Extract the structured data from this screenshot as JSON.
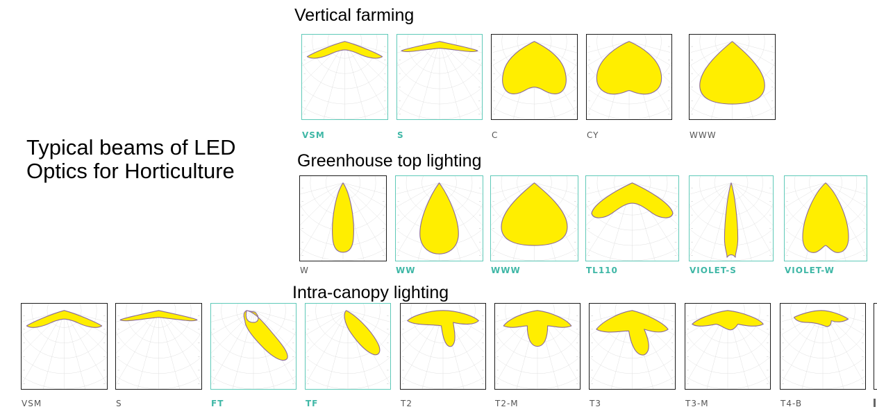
{
  "title_lines": [
    "Typical beams of LED",
    "Optics for Horticulture"
  ],
  "colors": {
    "teal": "#5ec9b8",
    "beam_fill": "#ffee00",
    "beam_edge": "#8a6a9a",
    "grid": "#dadada"
  },
  "sections": [
    {
      "title": "Vertical farming",
      "panels": [
        {
          "label": "VSM",
          "teal": true,
          "shape": "flat-wide"
        },
        {
          "label": "S",
          "teal": true,
          "shape": "flat-thin"
        },
        {
          "label": "C",
          "teal": false,
          "shape": "wide-dented"
        },
        {
          "label": "CY",
          "teal": false,
          "shape": "wide-dented2"
        },
        {
          "label": "WWW",
          "teal": false,
          "shape": "wide-teardrop"
        }
      ]
    },
    {
      "title": "Greenhouse top lighting",
      "panels": [
        {
          "label": "W",
          "teal": false,
          "shape": "narrow"
        },
        {
          "label": "WW",
          "teal": true,
          "shape": "teardrop"
        },
        {
          "label": "WWW",
          "teal": true,
          "shape": "wide-teardrop"
        },
        {
          "label": "TL110",
          "teal": true,
          "shape": "chevron"
        },
        {
          "label": "VIOLET-S",
          "teal": true,
          "shape": "spike"
        },
        {
          "label": "VIOLET-W",
          "teal": true,
          "shape": "bulb"
        }
      ]
    },
    {
      "title": "Intra-canopy lighting",
      "panels": [
        {
          "label": "VSM",
          "teal": false,
          "shape": "flat-wide"
        },
        {
          "label": "S",
          "teal": false,
          "shape": "flat-thin"
        },
        {
          "label": "FT",
          "teal": true,
          "shape": "diag"
        },
        {
          "label": "TF",
          "teal": true,
          "shape": "diag2"
        },
        {
          "label": "T2",
          "teal": false,
          "shape": "t2"
        },
        {
          "label": "T2-M",
          "teal": false,
          "shape": "t2m"
        },
        {
          "label": "T3",
          "teal": false,
          "shape": "t3"
        },
        {
          "label": "T3-M",
          "teal": false,
          "shape": "t3m"
        },
        {
          "label": "T4-B",
          "teal": false,
          "shape": "t4b"
        }
      ]
    }
  ]
}
